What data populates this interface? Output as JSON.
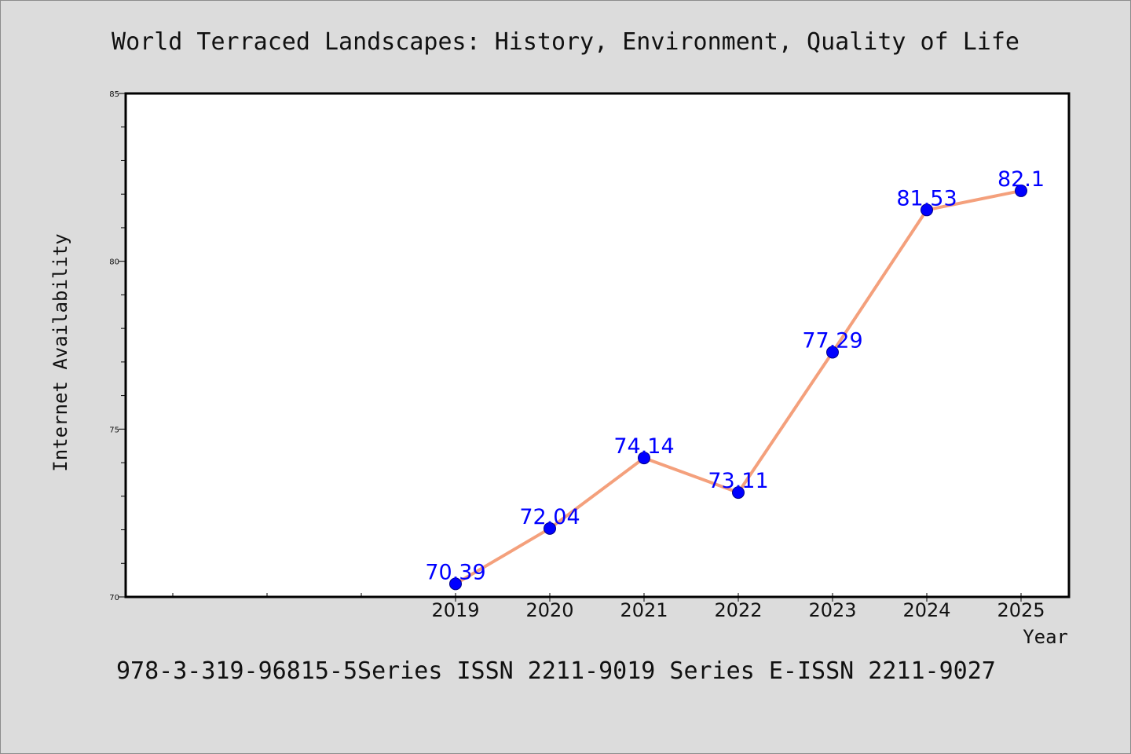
{
  "colors": {
    "background": "#dcdcdc",
    "plot_background": "#ffffff",
    "line": "#f4a07c",
    "marker": "#0000ff",
    "data_label": "#0000ff"
  },
  "chart_data": {
    "type": "line",
    "title": "World Terraced Landscapes: History, Environment, Quality of Life",
    "xlabel": "Year",
    "ylabel": "Internet Availability",
    "x": [
      "2019",
      "2020",
      "2021",
      "2022",
      "2023",
      "2024",
      "2025"
    ],
    "series": [
      {
        "values": [
          70.39,
          72.04,
          74.14,
          73.11,
          77.29,
          81.53,
          82.1
        ]
      }
    ],
    "data_labels": [
      "70.39",
      "72.04",
      "74.14",
      "73.11",
      "77.29",
      "81.53",
      "82.1"
    ],
    "x_ticks": [
      "2019",
      "2020",
      "2021",
      "2022",
      "2023",
      "2024",
      "2025"
    ],
    "y_ticks": [
      "70",
      "75",
      "80",
      "85"
    ],
    "ylim": [
      70,
      85
    ],
    "grid": false,
    "legend": "none"
  },
  "footer": {
    "text": "978-3-319-96815-5Series ISSN 2211-9019 Series E-ISSN 2211-9027"
  }
}
